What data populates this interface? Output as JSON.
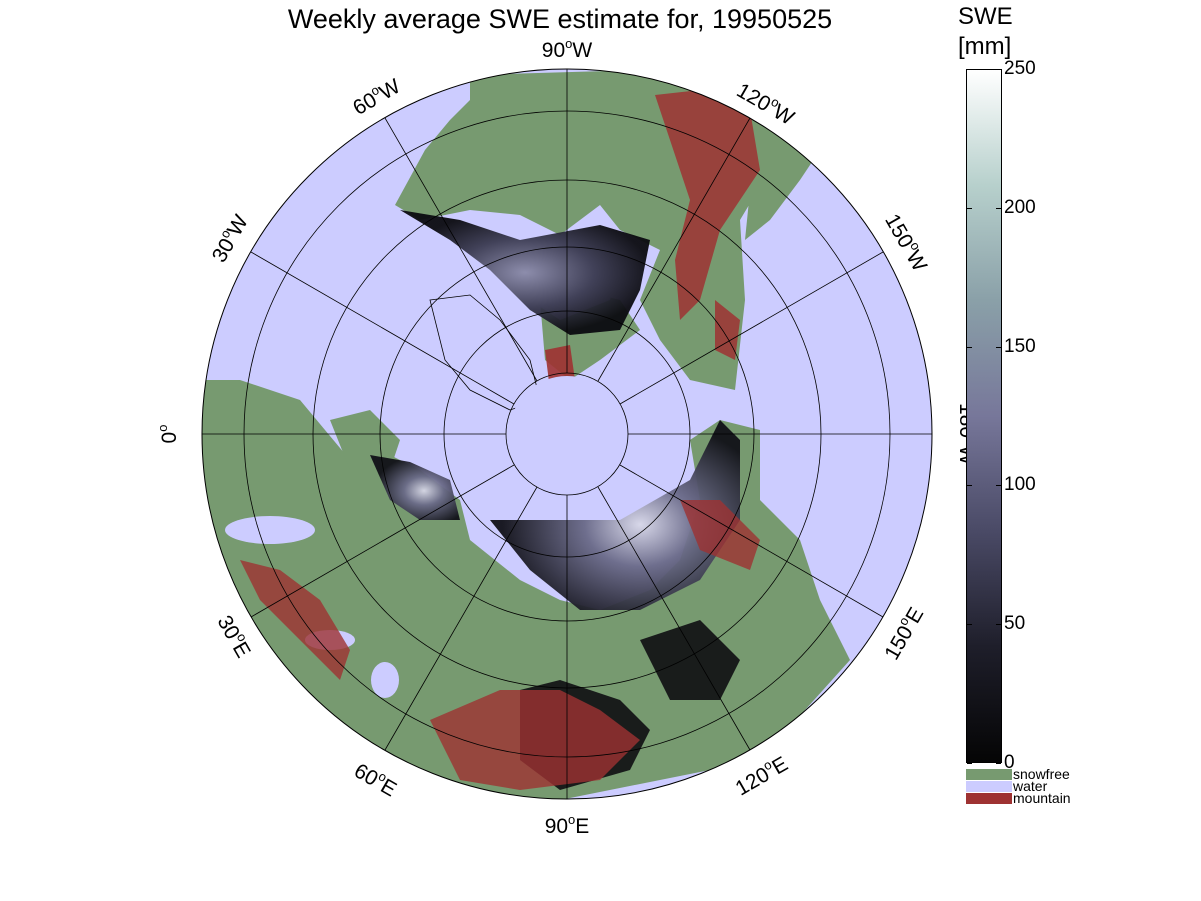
{
  "title": "Weekly average SWE estimate for, 19950525",
  "colorbar": {
    "title_line1": "SWE",
    "title_line2": "[mm]",
    "ticks": [
      "250",
      "200",
      "150",
      "100",
      "50",
      "0"
    ],
    "tick_values": [
      250,
      200,
      150,
      100,
      50,
      0
    ],
    "range": [
      0,
      250
    ],
    "gradient": [
      "#050505",
      "#1e1e2a",
      "#4a4a66",
      "#77779a",
      "#8aa0a8",
      "#b7d0cc",
      "#ffffff"
    ]
  },
  "legend": [
    {
      "label": "snowfree",
      "color": "#779a70"
    },
    {
      "label": "water",
      "color": "#ccccff"
    },
    {
      "label": "mountain",
      "color": "#9e3232"
    }
  ],
  "map": {
    "projection": "polar stereographic (north pole)",
    "ocean_color": "#ccccff",
    "land_color": "#779a70",
    "longitude_labels": [
      {
        "value": "90",
        "hemi": "W"
      },
      {
        "value": "120",
        "hemi": "W"
      },
      {
        "value": "150",
        "hemi": "W"
      },
      {
        "value": "180",
        "hemi": "W"
      },
      {
        "value": "150",
        "hemi": "E"
      },
      {
        "value": "120",
        "hemi": "E"
      },
      {
        "value": "90",
        "hemi": "E"
      },
      {
        "value": "60",
        "hemi": "E"
      },
      {
        "value": "30",
        "hemi": "E"
      },
      {
        "value": "0",
        "hemi": ""
      },
      {
        "value": "30",
        "hemi": "W"
      },
      {
        "value": "60",
        "hemi": "W"
      }
    ]
  }
}
